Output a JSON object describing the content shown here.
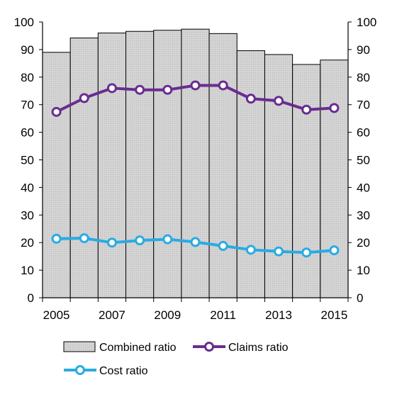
{
  "chart_data": {
    "type": "bar",
    "title": "",
    "xlabel": "",
    "ylabel": "",
    "ylim": [
      0,
      100
    ],
    "yticks": [
      0,
      10,
      20,
      30,
      40,
      50,
      60,
      70,
      80,
      90,
      100
    ],
    "x": [
      2005,
      2006,
      2007,
      2008,
      2009,
      2010,
      2011,
      2012,
      2013,
      2014,
      2015
    ],
    "x_tick_labels": [
      "2005",
      "2007",
      "2009",
      "2011",
      "2013",
      "2015"
    ],
    "grid": false,
    "legend_position": "bottom",
    "series": [
      {
        "name": "Combined ratio",
        "kind": "bar",
        "color": "#d3d3d3",
        "values": [
          89,
          94.2,
          96,
          96.6,
          97,
          97.4,
          95.8,
          89.6,
          88.2,
          84.6,
          86.2
        ]
      },
      {
        "name": "Claims ratio",
        "kind": "line",
        "color": "#6a2c91",
        "values": [
          67.4,
          72.4,
          76,
          75.4,
          75.4,
          77,
          77,
          72.2,
          71.4,
          68.2,
          68.8
        ]
      },
      {
        "name": "Cost ratio",
        "kind": "line",
        "color": "#29abe2",
        "values": [
          21.4,
          21.6,
          20,
          20.8,
          21.2,
          20.2,
          18.8,
          17.4,
          16.8,
          16.4,
          17.2
        ]
      }
    ]
  }
}
